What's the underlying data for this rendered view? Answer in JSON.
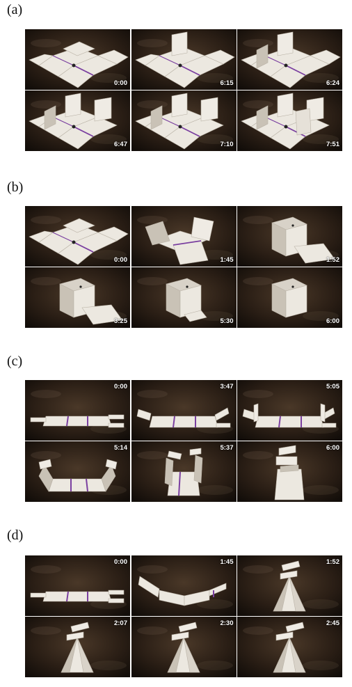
{
  "panels": [
    {
      "label": "(a)",
      "timestamp_position": "bottom-right",
      "frames": [
        {
          "time": "0:00",
          "scene": "flat-cross"
        },
        {
          "time": "6:15",
          "scene": "flat-one-up"
        },
        {
          "time": "6:24",
          "scene": "flat-one-up-b"
        },
        {
          "time": "6:47",
          "scene": "three-up"
        },
        {
          "time": "7:10",
          "scene": "three-up-b"
        },
        {
          "time": "7:51",
          "scene": "four-up"
        }
      ]
    },
    {
      "label": "(b)",
      "timestamp_position": "bottom-right",
      "frames": [
        {
          "time": "0:00",
          "scene": "flat-cross"
        },
        {
          "time": "1:45",
          "scene": "partial-fold"
        },
        {
          "time": "1:52",
          "scene": "box-with-flap"
        },
        {
          "time": "3:25",
          "scene": "box-with-flap-b"
        },
        {
          "time": "5:30",
          "scene": "box-small-flap"
        },
        {
          "time": "6:00",
          "scene": "box"
        }
      ]
    },
    {
      "label": "(c)",
      "timestamp_position": "top-right",
      "frames": [
        {
          "time": "0:00",
          "scene": "strip-flat"
        },
        {
          "time": "3:47",
          "scene": "strip-tabs-up"
        },
        {
          "time": "5:05",
          "scene": "strip-curl"
        },
        {
          "time": "5:14",
          "scene": "strip-u"
        },
        {
          "time": "5:37",
          "scene": "strip-upright"
        },
        {
          "time": "6:00",
          "scene": "strip-tall"
        }
      ]
    },
    {
      "label": "(d)",
      "timestamp_position": "top-right",
      "frames": [
        {
          "time": "0:00",
          "scene": "strip-flat"
        },
        {
          "time": "1:45",
          "scene": "strip-v"
        },
        {
          "time": "1:52",
          "scene": "tent"
        },
        {
          "time": "2:07",
          "scene": "tent-b"
        },
        {
          "time": "2:30",
          "scene": "tent-c"
        },
        {
          "time": "2:45",
          "scene": "tent-d"
        }
      ]
    }
  ],
  "colors": {
    "background": "#ffffff",
    "paper": "#ece8e0",
    "paper_shade": "#c9c2b6",
    "stripe": "#7a3fa0",
    "table": "#2a1e15",
    "timestamp": "#ffffff"
  }
}
